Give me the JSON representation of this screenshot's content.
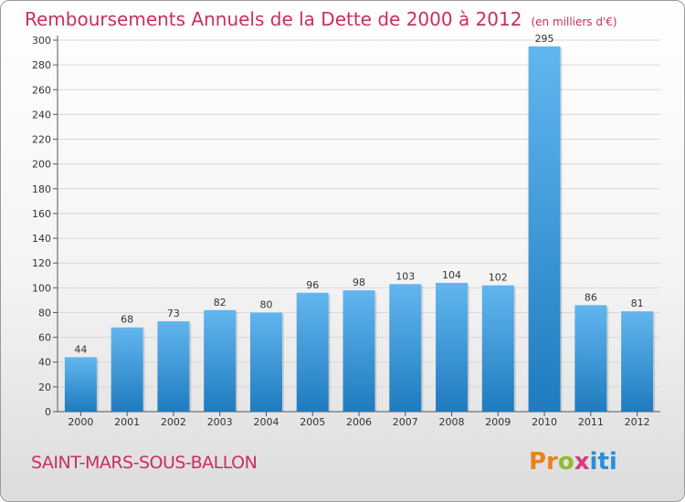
{
  "header": {
    "title": "Remboursements Annuels de la Dette de 2000 à 2012",
    "unit": "(en milliers d'€)"
  },
  "footer": {
    "commune": "SAINT-MARS-SOUS-BALLON",
    "logo": "Proxiti"
  },
  "colors": {
    "title": "#c8305a",
    "bar_light": "#5eb2ea",
    "bar_dark": "#1f7bbf",
    "grid": "#d6d6d6"
  },
  "chart_data": {
    "type": "bar",
    "categories": [
      "2000",
      "2001",
      "2002",
      "2003",
      "2004",
      "2005",
      "2006",
      "2007",
      "2008",
      "2009",
      "2010",
      "2011",
      "2012"
    ],
    "values": [
      44,
      68,
      73,
      82,
      80,
      96,
      98,
      103,
      104,
      102,
      295,
      86,
      81
    ],
    "title": "Remboursements Annuels de la Dette de 2000 à 2012",
    "subtitle": "(en milliers d'€)",
    "ylim": [
      0,
      300
    ],
    "yticks": [
      0,
      20,
      40,
      60,
      80,
      100,
      120,
      140,
      160,
      180,
      200,
      220,
      240,
      260,
      280,
      300
    ],
    "grid": true
  }
}
